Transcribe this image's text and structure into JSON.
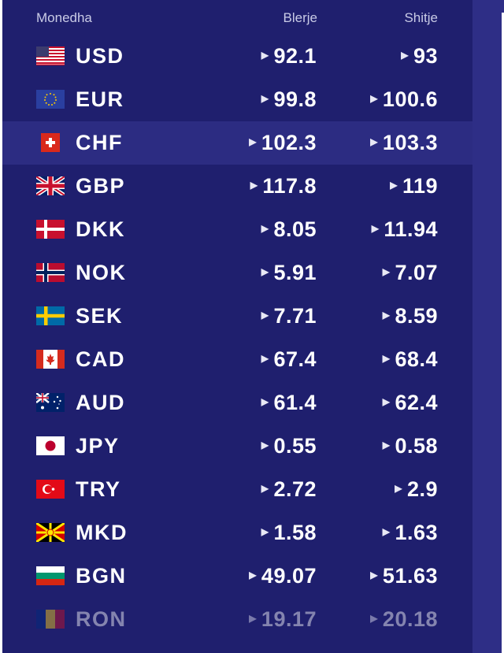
{
  "header": {
    "currency": "Monedha",
    "buy": "Blerje",
    "sell": "Shitje"
  },
  "colors": {
    "panel": "#1f1f6e",
    "highlight_row": "#2c2c82",
    "text": "#ffffff",
    "header_text": "#c9cbe6"
  },
  "rows": [
    {
      "code": "USD",
      "flag": "usa-flag-icon",
      "buy": "92.1",
      "sell": "93"
    },
    {
      "code": "EUR",
      "flag": "eu-flag-icon",
      "buy": "99.8",
      "sell": "100.6"
    },
    {
      "code": "CHF",
      "flag": "switzerland-flag-icon",
      "buy": "102.3",
      "sell": "103.3",
      "highlighted": true
    },
    {
      "code": "GBP",
      "flag": "uk-flag-icon",
      "buy": "117.8",
      "sell": "119"
    },
    {
      "code": "DKK",
      "flag": "denmark-flag-icon",
      "buy": "8.05",
      "sell": "11.94"
    },
    {
      "code": "NOK",
      "flag": "norway-flag-icon",
      "buy": "5.91",
      "sell": "7.07"
    },
    {
      "code": "SEK",
      "flag": "sweden-flag-icon",
      "buy": "7.71",
      "sell": "8.59"
    },
    {
      "code": "CAD",
      "flag": "canada-flag-icon",
      "buy": "67.4",
      "sell": "68.4"
    },
    {
      "code": "AUD",
      "flag": "australia-flag-icon",
      "buy": "61.4",
      "sell": "62.4"
    },
    {
      "code": "JPY",
      "flag": "japan-flag-icon",
      "buy": "0.55",
      "sell": "0.58"
    },
    {
      "code": "TRY",
      "flag": "turkey-flag-icon",
      "buy": "2.72",
      "sell": "2.9"
    },
    {
      "code": "MKD",
      "flag": "north-macedonia-flag-icon",
      "buy": "1.58",
      "sell": "1.63"
    },
    {
      "code": "BGN",
      "flag": "bulgaria-flag-icon",
      "buy": "49.07",
      "sell": "51.63"
    },
    {
      "code": "RON",
      "flag": "romania-flag-icon",
      "buy": "19.17",
      "sell": "20.18",
      "faded": true
    }
  ]
}
